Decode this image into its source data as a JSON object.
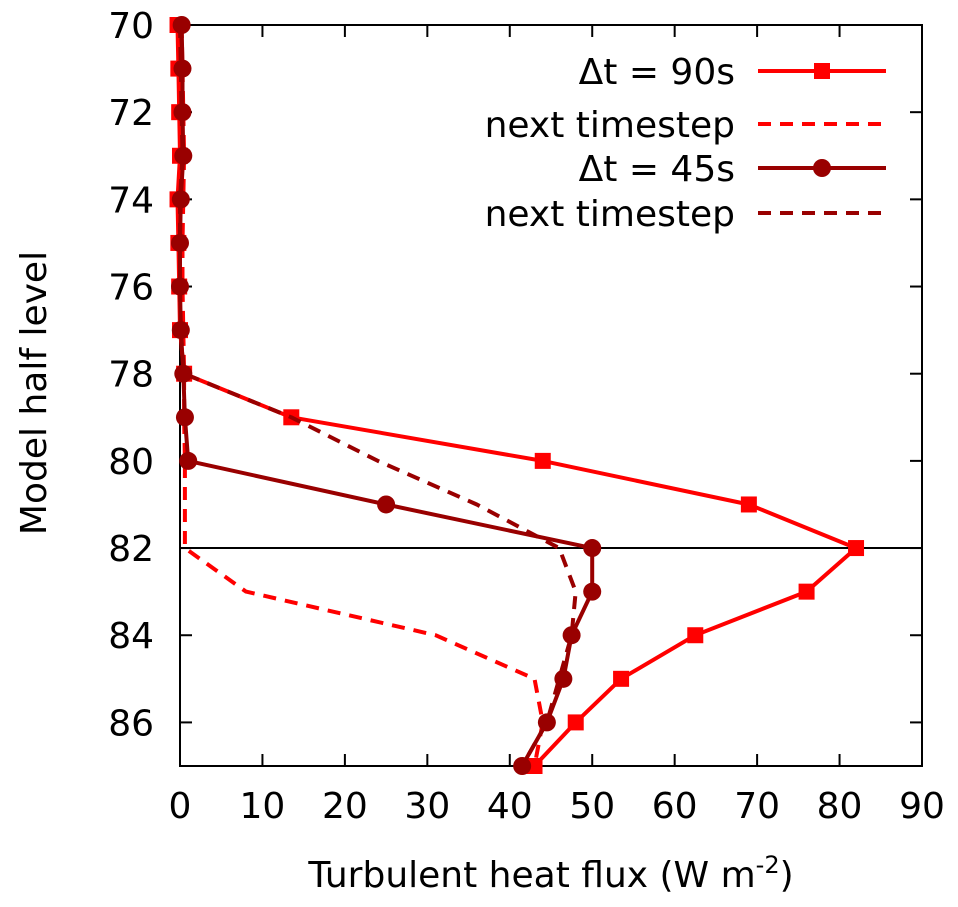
{
  "chart_data": {
    "type": "line",
    "xlabel": "Turbulent heat flux (W m",
    "xlabel_superscript": "-2",
    "xlabel_suffix": ")",
    "ylabel": "Model half level",
    "xlim": [
      0,
      90
    ],
    "ylim": [
      87,
      70
    ],
    "y_inverted": true,
    "x_ticks": [
      0,
      10,
      20,
      30,
      40,
      50,
      60,
      70,
      80,
      90
    ],
    "x_tick_labels": [
      "0",
      "10",
      "20",
      "30",
      "40",
      "50",
      "60",
      "70",
      "80",
      "90"
    ],
    "y_ticks": [
      70,
      72,
      74,
      76,
      78,
      80,
      82,
      84,
      86
    ],
    "y_tick_labels": [
      "70",
      "72",
      "74",
      "76",
      "78",
      "80",
      "82",
      "84",
      "86"
    ],
    "grid": false,
    "reference_line_y": 82,
    "legend_position": "top-right",
    "series": [
      {
        "name": "Δt = 90s",
        "color": "#ff0000",
        "style": "solid",
        "marker": "square",
        "y": [
          70,
          71,
          72,
          73,
          74,
          75,
          76,
          77,
          78,
          79,
          80,
          81,
          82,
          83,
          84,
          85,
          86,
          87
        ],
        "x": [
          -0.3,
          -0.2,
          -0.1,
          0.0,
          -0.3,
          -0.2,
          -0.1,
          0.0,
          0.5,
          13.5,
          44,
          69,
          82,
          76,
          62.5,
          53.5,
          48,
          43
        ]
      },
      {
        "name": "next timestep",
        "color": "#ff0000",
        "style": "dashed",
        "marker": "none",
        "y": [
          70,
          71,
          72,
          73,
          74,
          75,
          76,
          77,
          78,
          79,
          80,
          81,
          82,
          83,
          84,
          85,
          86,
          87
        ],
        "x": [
          0.2,
          0.3,
          0.4,
          0.5,
          0.4,
          0.3,
          0.3,
          0.4,
          0.5,
          0.5,
          0.6,
          0.6,
          0.6,
          8,
          31,
          43,
          44,
          43
        ]
      },
      {
        "name": "Δt = 45s",
        "color": "#990000",
        "style": "solid",
        "marker": "circle",
        "y": [
          70,
          71,
          72,
          73,
          74,
          75,
          76,
          77,
          78,
          79,
          80,
          81,
          82,
          83,
          84,
          85,
          86,
          87
        ],
        "x": [
          0.2,
          0.3,
          0.3,
          0.4,
          0.1,
          0.0,
          0.0,
          0.1,
          0.4,
          0.6,
          1.0,
          25,
          50,
          50,
          47.5,
          46.5,
          44.5,
          41.5
        ]
      },
      {
        "name": "next timestep",
        "color": "#990000",
        "style": "dashed",
        "marker": "none",
        "y": [
          70,
          71,
          72,
          73,
          74,
          75,
          76,
          77,
          78,
          79,
          80,
          81,
          82,
          83,
          84,
          85,
          86,
          87
        ],
        "x": [
          0.0,
          0.1,
          0.2,
          0.3,
          0.0,
          0.0,
          0.0,
          0.1,
          0.5,
          13.5,
          24,
          36,
          46,
          48,
          47.5,
          46,
          44.5,
          41.5
        ]
      }
    ]
  }
}
